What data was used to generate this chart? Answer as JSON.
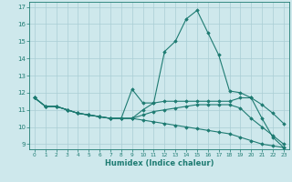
{
  "xlabel": "Humidex (Indice chaleur)",
  "bg_color": "#cee8ec",
  "grid_color": "#aacdd4",
  "line_color": "#1e7b72",
  "xlim": [
    -0.5,
    23.5
  ],
  "ylim": [
    8.7,
    17.3
  ],
  "xticks": [
    0,
    1,
    2,
    3,
    4,
    5,
    6,
    7,
    8,
    9,
    10,
    11,
    12,
    13,
    14,
    15,
    16,
    17,
    18,
    19,
    20,
    21,
    22,
    23
  ],
  "yticks": [
    9,
    10,
    11,
    12,
    13,
    14,
    15,
    16,
    17
  ],
  "curves": [
    {
      "x": [
        0,
        1,
        2,
        3,
        4,
        5,
        6,
        7,
        8,
        9,
        10,
        11,
        12,
        13,
        14,
        15,
        16,
        17,
        18,
        19,
        20,
        21,
        22,
        23
      ],
      "y": [
        11.7,
        11.2,
        11.2,
        11.0,
        10.8,
        10.7,
        10.6,
        10.5,
        10.5,
        10.5,
        11.0,
        11.4,
        14.4,
        15.0,
        16.3,
        16.8,
        15.5,
        14.2,
        12.1,
        12.0,
        11.7,
        10.5,
        9.4,
        8.8
      ]
    },
    {
      "x": [
        0,
        1,
        2,
        3,
        4,
        5,
        6,
        7,
        8,
        9,
        10,
        11,
        12,
        13,
        14,
        15,
        16,
        17,
        18,
        19,
        20,
        21,
        22,
        23
      ],
      "y": [
        11.7,
        11.2,
        11.2,
        11.0,
        10.8,
        10.7,
        10.6,
        10.5,
        10.5,
        12.2,
        11.4,
        11.4,
        11.5,
        11.5,
        11.5,
        11.5,
        11.5,
        11.5,
        11.5,
        11.7,
        11.7,
        11.3,
        10.8,
        10.2
      ]
    },
    {
      "x": [
        0,
        1,
        2,
        3,
        4,
        5,
        6,
        7,
        8,
        9,
        10,
        11,
        12,
        13,
        14,
        15,
        16,
        17,
        18,
        19,
        20,
        21,
        22,
        23
      ],
      "y": [
        11.7,
        11.2,
        11.2,
        11.0,
        10.8,
        10.7,
        10.6,
        10.5,
        10.5,
        10.5,
        10.7,
        10.9,
        11.0,
        11.1,
        11.2,
        11.3,
        11.3,
        11.3,
        11.3,
        11.1,
        10.5,
        10.0,
        9.5,
        9.0
      ]
    },
    {
      "x": [
        0,
        1,
        2,
        3,
        4,
        5,
        6,
        7,
        8,
        9,
        10,
        11,
        12,
        13,
        14,
        15,
        16,
        17,
        18,
        19,
        20,
        21,
        22,
        23
      ],
      "y": [
        11.7,
        11.2,
        11.2,
        11.0,
        10.8,
        10.7,
        10.6,
        10.5,
        10.5,
        10.5,
        10.4,
        10.3,
        10.2,
        10.1,
        10.0,
        9.9,
        9.8,
        9.7,
        9.6,
        9.4,
        9.2,
        9.0,
        8.9,
        8.8
      ]
    }
  ]
}
